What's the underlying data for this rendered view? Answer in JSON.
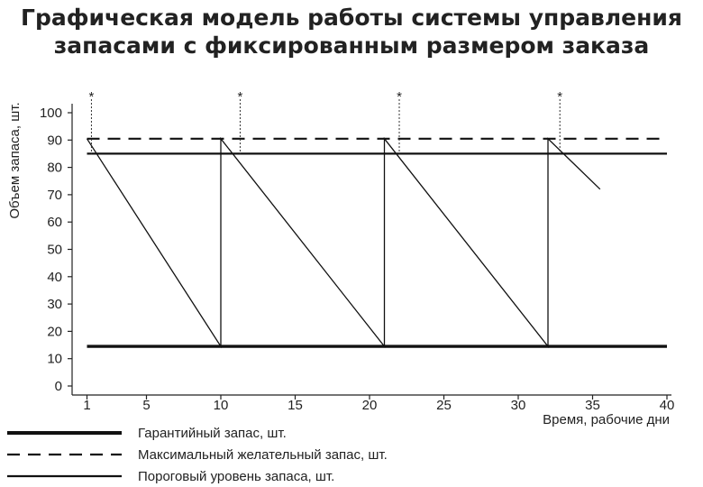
{
  "page": {
    "title_line1": "Графическая модель работы системы управления",
    "title_line2": "запасами с фиксированным размером заказа"
  },
  "chart_data": {
    "type": "line",
    "xlabel": "Время, рабочие дни",
    "ylabel": "Объем запаса, шт.",
    "xlim": [
      0,
      40
    ],
    "ylim": [
      0,
      100
    ],
    "x_ticks": [
      1,
      5,
      10,
      15,
      20,
      25,
      30,
      35,
      40
    ],
    "y_ticks": [
      0,
      10,
      20,
      30,
      40,
      50,
      60,
      70,
      80,
      90,
      100
    ],
    "order_marker": "*",
    "order_points": [
      1.3,
      11.3,
      22,
      32.8
    ],
    "series": [
      {
        "name": "Гарантийный запас, шт.",
        "style": "thick",
        "color": "#111111",
        "points": [
          [
            1,
            14.5
          ],
          [
            40,
            14.5
          ]
        ]
      },
      {
        "name": "Максимальный желательный запас, шт.",
        "style": "dashed",
        "color": "#111111",
        "points": [
          [
            1,
            90.5
          ],
          [
            40,
            90.5
          ]
        ]
      },
      {
        "name": "Пороговый уровень запаса, шт.",
        "style": "solid",
        "color": "#111111",
        "points": [
          [
            1,
            85
          ],
          [
            40,
            85
          ]
        ]
      },
      {
        "name": "",
        "style": "thin",
        "color": "#111111",
        "points": [
          [
            1,
            90.5
          ],
          [
            10,
            14.5
          ],
          [
            10,
            90.5
          ],
          [
            21,
            14.5
          ],
          [
            21,
            90.5
          ],
          [
            32,
            14.5
          ],
          [
            32,
            90.5
          ],
          [
            35.5,
            72
          ]
        ]
      }
    ]
  }
}
